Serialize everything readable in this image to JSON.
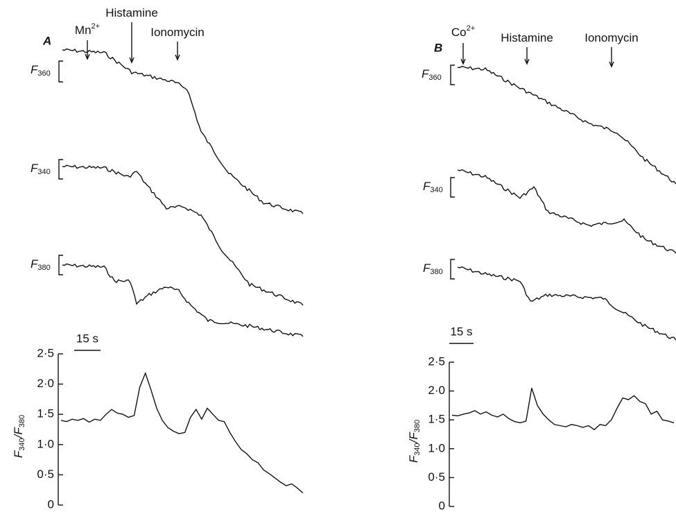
{
  "panels": [
    {
      "letter": "A",
      "stimuli": [
        {
          "name": "Mn",
          "sup": "2+"
        },
        {
          "name": "Histamine"
        },
        {
          "name": "Ionomycin"
        }
      ],
      "traces": [
        [
          "F",
          "360"
        ],
        [
          "F",
          "340"
        ],
        [
          "F",
          "380"
        ]
      ],
      "scale_bar": "15 s",
      "ratio_chart": {
        "type": "line",
        "ylabel": [
          "F",
          "340",
          "/F",
          "380"
        ],
        "color": "#111111",
        "ylim": [
          0,
          2.5
        ],
        "yticks": [
          0,
          {
            "value": 0.5,
            "label": "0·5"
          },
          {
            "value": 1.0,
            "label": "1·0"
          },
          {
            "value": 1.5,
            "label": "1·5"
          },
          {
            "value": 2.0,
            "label": "2·0"
          },
          {
            "value": 2.5,
            "label": "2·5"
          }
        ],
        "values": [
          1.4,
          1.38,
          1.42,
          1.4,
          1.43,
          1.37,
          1.42,
          1.4,
          1.5,
          1.58,
          1.52,
          1.5,
          1.45,
          1.48,
          1.95,
          2.18,
          1.9,
          1.6,
          1.4,
          1.28,
          1.22,
          1.18,
          1.2,
          1.45,
          1.58,
          1.42,
          1.6,
          1.5,
          1.4,
          1.38,
          1.2,
          1.05,
          0.92,
          0.85,
          0.75,
          0.7,
          0.58,
          0.52,
          0.45,
          0.38,
          0.32,
          0.35,
          0.28,
          0.2
        ]
      }
    },
    {
      "letter": "B",
      "stimuli": [
        {
          "name": "Co",
          "sup": "2+"
        },
        {
          "name": "Histamine"
        },
        {
          "name": "Ionomycin"
        }
      ],
      "traces": [
        [
          "F",
          "360"
        ],
        [
          "F",
          "340"
        ],
        [
          "F",
          "380"
        ]
      ],
      "scale_bar": "15 s",
      "ratio_chart": {
        "type": "line",
        "ylabel": [
          "F",
          "340",
          "/F",
          "380"
        ],
        "color": "#111111",
        "ylim": [
          0,
          2.5
        ],
        "yticks": [
          0,
          {
            "value": 0.5,
            "label": "0·5"
          },
          {
            "value": 1.0,
            "label": "1·0"
          },
          {
            "value": 1.5,
            "label": "1·5"
          },
          {
            "value": 2.0,
            "label": "2·0"
          },
          {
            "value": 2.5,
            "label": "2·5"
          }
        ],
        "values": [
          1.58,
          1.57,
          1.6,
          1.62,
          1.66,
          1.6,
          1.64,
          1.58,
          1.55,
          1.6,
          1.52,
          1.47,
          1.45,
          1.48,
          2.05,
          1.75,
          1.6,
          1.5,
          1.42,
          1.4,
          1.38,
          1.42,
          1.4,
          1.37,
          1.4,
          1.33,
          1.42,
          1.4,
          1.5,
          1.7,
          1.88,
          1.85,
          1.92,
          1.82,
          1.78,
          1.6,
          1.65,
          1.5,
          1.48,
          1.45
        ]
      }
    }
  ]
}
